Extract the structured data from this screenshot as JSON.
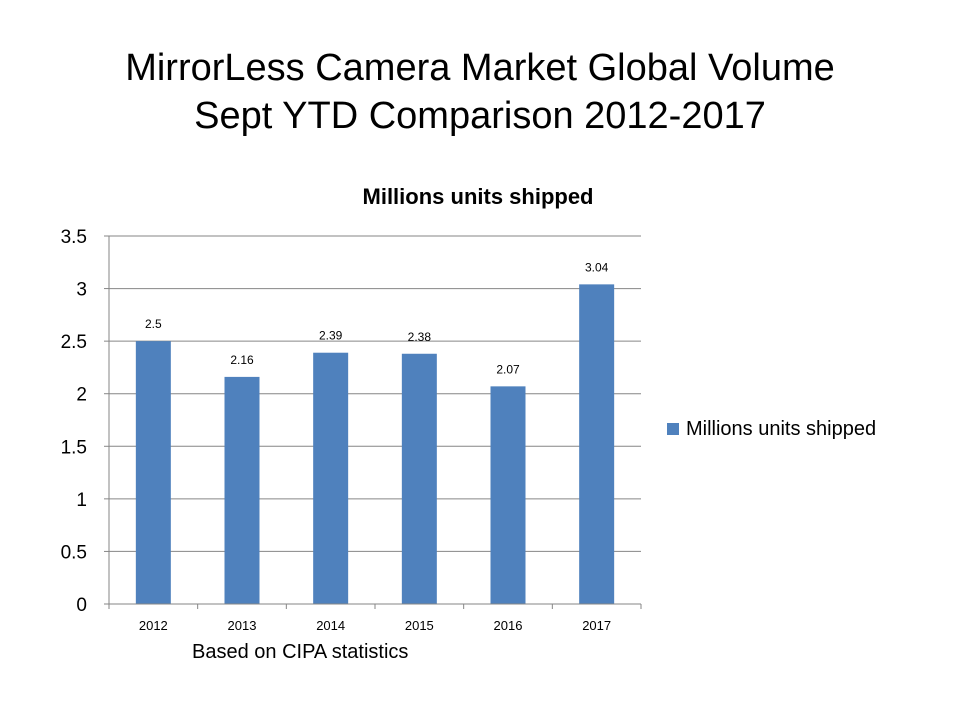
{
  "slide": {
    "title_line1": "MirrorLess Camera Market Global Volume",
    "title_line2": "Sept YTD Comparison 2012-2017",
    "footnote": "Based on CIPA statistics"
  },
  "chart_data": {
    "type": "bar",
    "title": "Millions units shipped",
    "categories": [
      "2012",
      "2013",
      "2014",
      "2015",
      "2016",
      "2017"
    ],
    "series": [
      {
        "name": "Millions units shipped",
        "values": [
          2.5,
          2.16,
          2.39,
          2.38,
          2.07,
          3.04
        ],
        "color": "#4F81BD"
      }
    ],
    "data_labels": [
      "2.5",
      "2.16",
      "2.39",
      "2.38",
      "2.07",
      "3.04"
    ],
    "ylim": [
      0,
      3.5
    ],
    "yticks": [
      0,
      0.5,
      1,
      1.5,
      2,
      2.5,
      3,
      3.5
    ],
    "ytick_labels": [
      "0",
      "0.5",
      "1",
      "1.5",
      "2",
      "2.5",
      "3",
      "3.5"
    ],
    "grid": true,
    "legend": "right",
    "xlabel": "",
    "ylabel": ""
  }
}
